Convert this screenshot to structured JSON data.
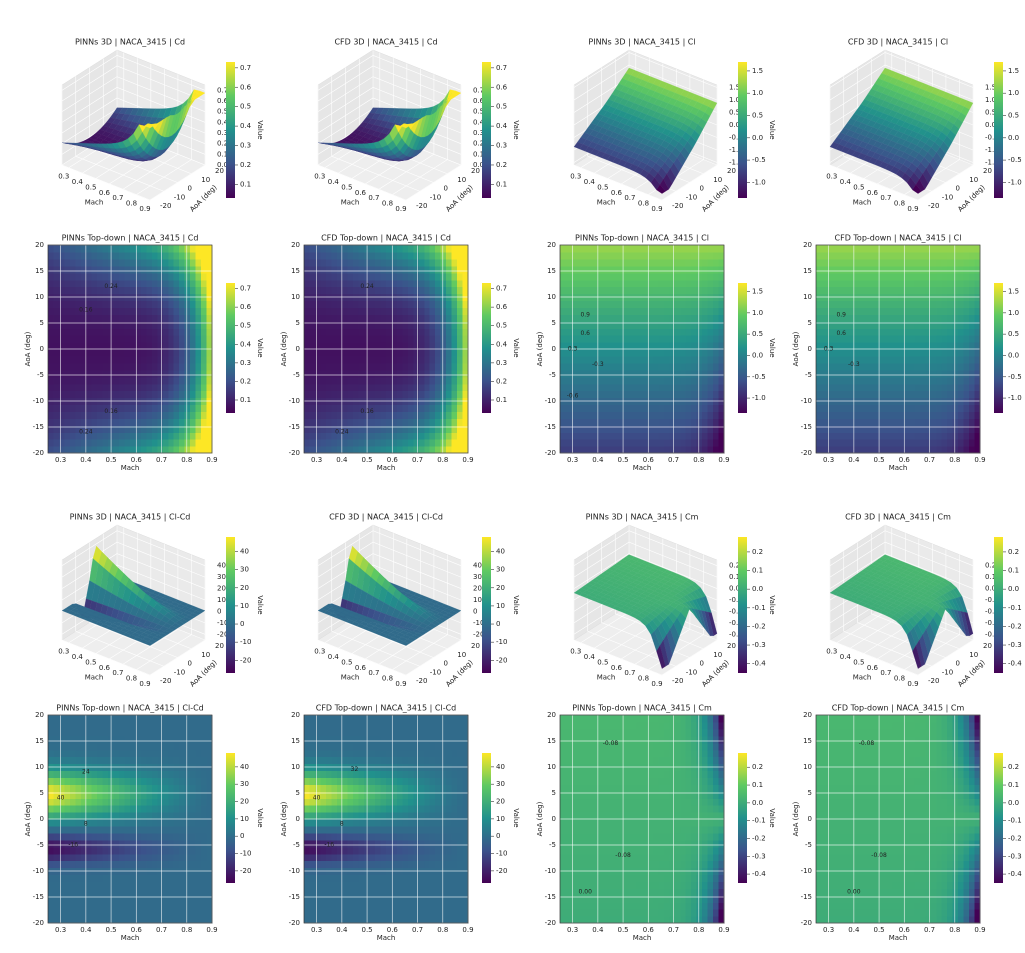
{
  "chart_data": [
    {
      "type": "surface3d",
      "title": "PINNs 3D | NACA_3415 | Cd",
      "xlabel": "Mach",
      "ylabel": "AoA (deg)",
      "xlim": [
        0.25,
        0.9
      ],
      "xticks": [
        0.3,
        0.4,
        0.5,
        0.6,
        0.7,
        0.8,
        0.9
      ],
      "ylim": [
        -20,
        20
      ],
      "yticks": [
        -20,
        -10,
        0,
        10,
        20
      ],
      "zlim": [
        0,
        0.75
      ],
      "zticks": [
        {
          "value": 0,
          "label": "0.0"
        },
        0.1,
        0.2,
        0.3,
        0.4,
        0.5,
        0.6,
        0.7
      ],
      "colorbar": {
        "label": "Value",
        "lim": [
          0.03,
          0.73
        ],
        "ticks": [
          0.1,
          0.2,
          0.3,
          0.4,
          0.5,
          0.6,
          0.7
        ]
      }
    },
    {
      "type": "surface3d",
      "title": "CFD 3D | NACA_3415 | Cd",
      "xlabel": "Mach",
      "ylabel": "AoA (deg)",
      "xlim": [
        0.25,
        0.9
      ],
      "xticks": [
        0.3,
        0.4,
        0.5,
        0.6,
        0.7,
        0.8,
        0.9
      ],
      "ylim": [
        -20,
        20
      ],
      "yticks": [
        -20,
        -10,
        0,
        10,
        20
      ],
      "zlim": [
        0,
        0.75
      ],
      "zticks": [
        {
          "value": 0,
          "label": "0.0"
        },
        0.1,
        0.2,
        0.3,
        0.4,
        0.5,
        0.6,
        0.7
      ],
      "colorbar": {
        "label": "Value",
        "lim": [
          0.03,
          0.73
        ],
        "ticks": [
          0.1,
          0.2,
          0.3,
          0.4,
          0.5,
          0.6,
          0.7
        ]
      }
    },
    {
      "type": "surface3d",
      "title": "PINNs 3D | NACA_3415 | Cl",
      "xlabel": "Mach",
      "ylabel": "AoA (deg)",
      "xlim": [
        0.25,
        0.9
      ],
      "xticks": [
        0.3,
        0.4,
        0.5,
        0.6,
        0.7,
        0.8,
        0.9
      ],
      "ylim": [
        -20,
        20
      ],
      "yticks": [
        -20,
        -10,
        0,
        10,
        20
      ],
      "zlim": [
        -1.6,
        1.6
      ],
      "zticks": [
        -1.5,
        {
          "value": -1,
          "label": "-1.0"
        },
        -0.5,
        {
          "value": 0,
          "label": "0.0"
        },
        0.5,
        {
          "value": 1,
          "label": "1.0"
        },
        1.5
      ],
      "colorbar": {
        "label": "Value",
        "lim": [
          -1.35,
          1.7
        ],
        "ticks": [
          {
            "value": -1,
            "label": "-1.0"
          },
          -0.5,
          {
            "value": 0,
            "label": "0.0"
          },
          0.5,
          {
            "value": 1,
            "label": "1.0"
          },
          1.5
        ]
      }
    },
    {
      "type": "surface3d",
      "title": "CFD 3D | NACA_3415 | Cl",
      "xlabel": "Mach",
      "ylabel": "AoA (deg)",
      "xlim": [
        0.25,
        0.9
      ],
      "xticks": [
        0.3,
        0.4,
        0.5,
        0.6,
        0.7,
        0.8,
        0.9
      ],
      "ylim": [
        -20,
        20
      ],
      "yticks": [
        -20,
        -10,
        0,
        10,
        20
      ],
      "zlim": [
        -1.6,
        1.6
      ],
      "zticks": [
        -1.5,
        {
          "value": -1,
          "label": "-1.0"
        },
        -0.5,
        {
          "value": 0,
          "label": "0.0"
        },
        0.5,
        {
          "value": 1,
          "label": "1.0"
        },
        1.5
      ],
      "colorbar": {
        "label": "Value",
        "lim": [
          -1.35,
          1.7
        ],
        "ticks": [
          {
            "value": -1,
            "label": "-1.0"
          },
          -0.5,
          {
            "value": 0,
            "label": "0.0"
          },
          0.5,
          {
            "value": 1,
            "label": "1.0"
          },
          1.5
        ]
      }
    },
    {
      "type": "contour",
      "title": "PINNs Top-down | NACA_3415 | Cd",
      "xlabel": "Mach",
      "ylabel": "AoA (deg)",
      "xlim": [
        0.25,
        0.9
      ],
      "xticks": [
        0.3,
        0.4,
        0.5,
        0.6,
        0.7,
        0.8,
        0.9
      ],
      "ylim": [
        -20,
        20
      ],
      "yticks": [
        -20,
        -15,
        -10,
        -5,
        0,
        5,
        10,
        15,
        20
      ],
      "grid": true,
      "colorbar": {
        "label": "Value",
        "lim": [
          0.03,
          0.73
        ],
        "ticks": [
          0.1,
          0.2,
          0.3,
          0.4,
          0.5,
          0.6,
          0.7
        ]
      },
      "annotations": [
        {
          "text": "0.24",
          "x": 0.5,
          "y": 12
        },
        {
          "text": "0.16",
          "x": 0.4,
          "y": 7.5
        },
        {
          "text": "0.16",
          "x": 0.5,
          "y": -12
        },
        {
          "text": "0.24",
          "x": 0.4,
          "y": -16
        }
      ]
    },
    {
      "type": "contour",
      "title": "CFD Top-down | NACA_3415 | Cd",
      "xlabel": "Mach",
      "ylabel": "AoA (deg)",
      "xlim": [
        0.25,
        0.9
      ],
      "xticks": [
        0.3,
        0.4,
        0.5,
        0.6,
        0.7,
        0.8,
        0.9
      ],
      "ylim": [
        -20,
        20
      ],
      "yticks": [
        -20,
        -15,
        -10,
        -5,
        0,
        5,
        10,
        15,
        20
      ],
      "grid": true,
      "colorbar": {
        "label": "Value",
        "lim": [
          0.03,
          0.73
        ],
        "ticks": [
          0.1,
          0.2,
          0.3,
          0.4,
          0.5,
          0.6,
          0.7
        ]
      },
      "annotations": [
        {
          "text": "0.24",
          "x": 0.5,
          "y": 12
        },
        {
          "text": "0.16",
          "x": 0.5,
          "y": -12
        },
        {
          "text": "0.24",
          "x": 0.4,
          "y": -16
        }
      ]
    },
    {
      "type": "contour",
      "title": "PINNs Top-down | NACA_3415 | Cl",
      "xlabel": "Mach",
      "ylabel": "AoA (deg)",
      "xlim": [
        0.25,
        0.9
      ],
      "xticks": [
        0.3,
        0.4,
        0.5,
        0.6,
        0.7,
        0.8,
        0.9
      ],
      "ylim": [
        -20,
        20
      ],
      "yticks": [
        -20,
        -15,
        -10,
        -5,
        0,
        5,
        10,
        15,
        20
      ],
      "grid": true,
      "colorbar": {
        "label": "Value",
        "lim": [
          -1.35,
          1.7
        ],
        "ticks": [
          {
            "value": -1,
            "label": "-1.0"
          },
          -0.5,
          {
            "value": 0,
            "label": "0.0"
          },
          0.5,
          {
            "value": 1,
            "label": "1.0"
          },
          1.5
        ]
      },
      "annotations": [
        {
          "text": "0.9",
          "x": 0.35,
          "y": 6.5
        },
        {
          "text": "0.6",
          "x": 0.35,
          "y": 3
        },
        {
          "text": "0.3",
          "x": 0.3,
          "y": 0
        },
        {
          "text": "-0.3",
          "x": 0.4,
          "y": -3
        },
        {
          "text": "-0.6",
          "x": 0.3,
          "y": -9
        }
      ]
    },
    {
      "type": "contour",
      "title": "CFD Top-down | NACA_3415 | Cl",
      "xlabel": "Mach",
      "ylabel": "AoA (deg)",
      "xlim": [
        0.25,
        0.9
      ],
      "xticks": [
        0.3,
        0.4,
        0.5,
        0.6,
        0.7,
        0.8,
        0.9
      ],
      "ylim": [
        -20,
        20
      ],
      "yticks": [
        -20,
        -15,
        -10,
        -5,
        0,
        5,
        10,
        15,
        20
      ],
      "grid": true,
      "colorbar": {
        "label": "Value",
        "lim": [
          -1.35,
          1.7
        ],
        "ticks": [
          {
            "value": -1,
            "label": "-1.0"
          },
          -0.5,
          {
            "value": 0,
            "label": "0.0"
          },
          0.5,
          {
            "value": 1,
            "label": "1.0"
          },
          1.5
        ]
      },
      "annotations": [
        {
          "text": "0.9",
          "x": 0.35,
          "y": 6.5
        },
        {
          "text": "0.6",
          "x": 0.35,
          "y": 3
        },
        {
          "text": "0.3",
          "x": 0.3,
          "y": 0
        },
        {
          "text": "-0.3",
          "x": 0.4,
          "y": -3
        }
      ]
    },
    {
      "type": "surface3d",
      "title": "PINNs 3D | NACA_3415 | Cl-Cd",
      "xlabel": "Mach",
      "ylabel": "AoA (deg)",
      "xlim": [
        0.25,
        0.9
      ],
      "xticks": [
        0.3,
        0.4,
        0.5,
        0.6,
        0.7,
        0.8,
        0.9
      ],
      "ylim": [
        -20,
        20
      ],
      "yticks": [
        -20,
        -10,
        0,
        10,
        20
      ],
      "zlim": [
        -25,
        45
      ],
      "zticks": [
        -20,
        -10,
        0,
        10,
        20,
        30,
        40
      ],
      "colorbar": {
        "label": "Value",
        "lim": [
          -27,
          48
        ],
        "ticks": [
          -20,
          -10,
          0,
          10,
          20,
          30,
          40
        ]
      }
    },
    {
      "type": "surface3d",
      "title": "CFD 3D | NACA_3415 | Cl-Cd",
      "xlabel": "Mach",
      "ylabel": "AoA (deg)",
      "xlim": [
        0.25,
        0.9
      ],
      "xticks": [
        0.3,
        0.4,
        0.5,
        0.6,
        0.7,
        0.8,
        0.9
      ],
      "ylim": [
        -20,
        20
      ],
      "yticks": [
        -20,
        -10,
        0,
        10,
        20
      ],
      "zlim": [
        -25,
        45
      ],
      "zticks": [
        -20,
        -10,
        0,
        10,
        20,
        30,
        40
      ],
      "colorbar": {
        "label": "Value",
        "lim": [
          -27,
          48
        ],
        "ticks": [
          -20,
          -10,
          0,
          10,
          20,
          30,
          40
        ]
      }
    },
    {
      "type": "surface3d",
      "title": "PINNs 3D | NACA_3415 | Cm",
      "xlabel": "Mach",
      "ylabel": "AoA (deg)",
      "xlim": [
        0.25,
        0.9
      ],
      "xticks": [
        0.3,
        0.4,
        0.5,
        0.6,
        0.7,
        0.8,
        0.9
      ],
      "ylim": [
        -20,
        20
      ],
      "yticks": [
        -20,
        -10,
        0,
        10,
        20
      ],
      "zlim": [
        -0.45,
        0.25
      ],
      "zticks": [
        -0.4,
        -0.3,
        -0.2,
        -0.1,
        {
          "value": 0,
          "label": "0.0"
        },
        0.1,
        0.2
      ],
      "colorbar": {
        "label": "Value",
        "lim": [
          -0.45,
          0.28
        ],
        "ticks": [
          -0.4,
          -0.3,
          -0.2,
          -0.1,
          {
            "value": 0,
            "label": "0.0"
          },
          0.1,
          0.2
        ]
      }
    },
    {
      "type": "surface3d",
      "title": "CFD 3D | NACA_3415 | Cm",
      "xlabel": "Mach",
      "ylabel": "AoA (deg)",
      "xlim": [
        0.25,
        0.9
      ],
      "xticks": [
        0.3,
        0.4,
        0.5,
        0.6,
        0.7,
        0.8,
        0.9
      ],
      "ylim": [
        -20,
        20
      ],
      "yticks": [
        -20,
        -10,
        0,
        10,
        20
      ],
      "zlim": [
        -0.45,
        0.25
      ],
      "zticks": [
        -0.4,
        -0.3,
        -0.2,
        -0.1,
        {
          "value": 0,
          "label": "0.0"
        },
        0.1,
        0.2
      ],
      "colorbar": {
        "label": "Value",
        "lim": [
          -0.45,
          0.28
        ],
        "ticks": [
          -0.4,
          -0.3,
          -0.2,
          -0.1,
          {
            "value": 0,
            "label": "0.0"
          },
          0.1,
          0.2
        ]
      }
    },
    {
      "type": "contour",
      "title": "PINNs Top-down | NACA_3415 | Cl-Cd",
      "xlabel": "Mach",
      "ylabel": "AoA (deg)",
      "xlim": [
        0.25,
        0.9
      ],
      "xticks": [
        0.3,
        0.4,
        0.5,
        0.6,
        0.7,
        0.8,
        0.9
      ],
      "ylim": [
        -20,
        20
      ],
      "yticks": [
        -20,
        -15,
        -10,
        -5,
        0,
        5,
        10,
        15,
        20
      ],
      "grid": true,
      "colorbar": {
        "label": "Value",
        "lim": [
          -27,
          48
        ],
        "ticks": [
          -20,
          -10,
          0,
          10,
          20,
          30,
          40
        ]
      },
      "annotations": [
        {
          "text": "24",
          "x": 0.4,
          "y": 9
        },
        {
          "text": "40",
          "x": 0.3,
          "y": 4
        },
        {
          "text": "8",
          "x": 0.4,
          "y": -1
        },
        {
          "text": "-16",
          "x": 0.35,
          "y": -5
        }
      ]
    },
    {
      "type": "contour",
      "title": "CFD Top-down | NACA_3415 | Cl-Cd",
      "xlabel": "Mach",
      "ylabel": "AoA (deg)",
      "xlim": [
        0.25,
        0.9
      ],
      "xticks": [
        0.3,
        0.4,
        0.5,
        0.6,
        0.7,
        0.8,
        0.9
      ],
      "ylim": [
        -20,
        20
      ],
      "yticks": [
        -20,
        -15,
        -10,
        -5,
        0,
        5,
        10,
        15,
        20
      ],
      "grid": true,
      "colorbar": {
        "label": "Value",
        "lim": [
          -27,
          48
        ],
        "ticks": [
          -20,
          -10,
          0,
          10,
          20,
          30,
          40
        ]
      },
      "annotations": [
        {
          "text": "32",
          "x": 0.45,
          "y": 9.5
        },
        {
          "text": "40",
          "x": 0.3,
          "y": 4
        },
        {
          "text": "8",
          "x": 0.4,
          "y": -1
        },
        {
          "text": "-16",
          "x": 0.35,
          "y": -5
        }
      ]
    },
    {
      "type": "contour",
      "title": "PINNs Top-down | NACA_3415 | Cm",
      "xlabel": "Mach",
      "ylabel": "AoA (deg)",
      "xlim": [
        0.25,
        0.9
      ],
      "xticks": [
        0.3,
        0.4,
        0.5,
        0.6,
        0.7,
        0.8,
        0.9
      ],
      "ylim": [
        -20,
        20
      ],
      "yticks": [
        -20,
        -15,
        -10,
        -5,
        0,
        5,
        10,
        15,
        20
      ],
      "grid": true,
      "colorbar": {
        "label": "Value",
        "lim": [
          -0.45,
          0.28
        ],
        "ticks": [
          -0.4,
          -0.3,
          -0.2,
          -0.1,
          {
            "value": 0,
            "label": "0.0"
          },
          0.1,
          0.2
        ]
      },
      "annotations": [
        {
          "text": "-0.08",
          "x": 0.45,
          "y": 14.5
        },
        {
          "text": "-0.08",
          "x": 0.5,
          "y": -7
        },
        {
          "text": "0.00",
          "x": 0.35,
          "y": -14
        }
      ]
    },
    {
      "type": "contour",
      "title": "CFD Top-down | NACA_3415 | Cm",
      "xlabel": "Mach",
      "ylabel": "AoA (deg)",
      "xlim": [
        0.25,
        0.9
      ],
      "xticks": [
        0.3,
        0.4,
        0.5,
        0.6,
        0.7,
        0.8,
        0.9
      ],
      "ylim": [
        -20,
        20
      ],
      "yticks": [
        -20,
        -15,
        -10,
        -5,
        0,
        5,
        10,
        15,
        20
      ],
      "grid": true,
      "colorbar": {
        "label": "Value",
        "lim": [
          -0.45,
          0.28
        ],
        "ticks": [
          -0.4,
          -0.3,
          -0.2,
          -0.1,
          {
            "value": 0,
            "label": "0.0"
          },
          0.1,
          0.2
        ]
      },
      "annotations": [
        {
          "text": "-0.08",
          "x": 0.45,
          "y": 14.5
        },
        {
          "text": "-0.08",
          "x": 0.5,
          "y": -7
        },
        {
          "text": "0.00",
          "x": 0.4,
          "y": -14
        }
      ]
    }
  ]
}
